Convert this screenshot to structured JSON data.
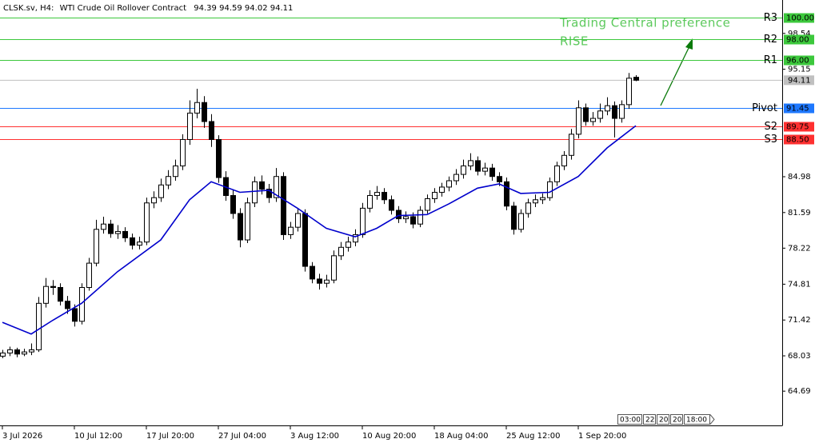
{
  "chart_data": {
    "type": "candlestick",
    "symbol": "CLSK.sv, H4:",
    "description": "WTI Crude Oil Rollover Contract",
    "annotation": [
      "Trading Central preference",
      "RISE"
    ],
    "xlim": [
      -0.33,
      108.33
    ],
    "ylim": [
      61.6,
      101.7
    ],
    "yticks": [
      64.69,
      68.03,
      71.42,
      74.81,
      78.22,
      81.59,
      84.98,
      95.15,
      98.54
    ],
    "xticks": [
      {
        "value": 0,
        "label": "3 Jul 2026"
      },
      {
        "value": 10,
        "label": "10 Jul 12:00"
      },
      {
        "value": 20,
        "label": "17 Jul 20:00"
      },
      {
        "value": 30,
        "label": "27 Jul 04:00"
      },
      {
        "value": 40,
        "label": "3 Aug 12:00"
      },
      {
        "value": 50,
        "label": "10 Aug 20:00"
      },
      {
        "value": 60,
        "label": "18 Aug 04:00"
      },
      {
        "value": 70,
        "label": "25 Aug 12:00"
      },
      {
        "value": 80,
        "label": "1 Sep 20:00"
      }
    ],
    "up_color": "#ffffff",
    "down_color": "#000000",
    "wick_color": "#000000",
    "candles": [
      [
        68.0,
        68.6,
        67.8,
        68.3
      ],
      [
        68.3,
        68.9,
        68.0,
        68.6
      ],
      [
        68.6,
        68.8,
        67.9,
        68.2
      ],
      [
        68.2,
        68.7,
        68.0,
        68.4
      ],
      [
        68.4,
        69.2,
        68.1,
        68.6
      ],
      [
        68.6,
        73.6,
        68.4,
        73.0
      ],
      [
        73.0,
        75.4,
        72.6,
        74.6
      ],
      [
        74.6,
        75.2,
        73.8,
        74.5
      ],
      [
        74.5,
        74.9,
        72.8,
        73.2
      ],
      [
        73.2,
        73.7,
        72.0,
        72.5
      ],
      [
        72.5,
        72.9,
        70.8,
        71.3
      ],
      [
        71.3,
        74.9,
        71.0,
        74.5
      ],
      [
        74.5,
        77.3,
        74.2,
        76.8
      ],
      [
        76.8,
        80.9,
        76.5,
        80.0
      ],
      [
        80.0,
        81.2,
        79.6,
        80.5
      ],
      [
        80.5,
        80.9,
        79.2,
        79.6
      ],
      [
        79.6,
        80.4,
        79.1,
        79.8
      ],
      [
        79.8,
        80.2,
        78.8,
        79.2
      ],
      [
        79.2,
        79.6,
        78.1,
        78.5
      ],
      [
        78.5,
        79.3,
        78.1,
        78.8
      ],
      [
        78.8,
        83.0,
        78.5,
        82.5
      ],
      [
        82.5,
        83.6,
        82.0,
        83.0
      ],
      [
        83.0,
        84.8,
        82.6,
        84.2
      ],
      [
        84.2,
        85.6,
        83.8,
        85.0
      ],
      [
        85.0,
        86.6,
        84.6,
        86.0
      ],
      [
        86.0,
        89.0,
        85.6,
        88.5
      ],
      [
        88.5,
        92.2,
        88.0,
        91.0
      ],
      [
        91.0,
        93.3,
        90.5,
        92.0
      ],
      [
        92.0,
        92.6,
        89.6,
        90.2
      ],
      [
        90.2,
        90.9,
        87.8,
        88.5
      ],
      [
        88.5,
        88.9,
        84.4,
        84.9
      ],
      [
        84.9,
        85.5,
        82.7,
        83.2
      ],
      [
        83.2,
        83.8,
        81.0,
        81.5
      ],
      [
        81.5,
        82.0,
        78.3,
        79.0
      ],
      [
        79.0,
        83.0,
        78.7,
        82.5
      ],
      [
        82.5,
        85.0,
        82.1,
        84.5
      ],
      [
        84.5,
        85.1,
        83.3,
        83.8
      ],
      [
        83.8,
        84.3,
        82.5,
        83.0
      ],
      [
        83.0,
        85.8,
        82.6,
        85.0
      ],
      [
        85.0,
        85.4,
        79.0,
        79.5
      ],
      [
        79.5,
        80.7,
        79.1,
        80.2
      ],
      [
        80.2,
        82.0,
        79.8,
        81.5
      ],
      [
        81.5,
        81.9,
        76.0,
        76.5
      ],
      [
        76.5,
        76.9,
        74.9,
        75.3
      ],
      [
        75.3,
        75.8,
        74.3,
        74.9
      ],
      [
        74.9,
        75.7,
        74.5,
        75.2
      ],
      [
        75.2,
        78.0,
        74.9,
        77.5
      ],
      [
        77.5,
        78.8,
        77.1,
        78.3
      ],
      [
        78.3,
        79.3,
        77.9,
        78.8
      ],
      [
        78.8,
        80.0,
        78.4,
        79.5
      ],
      [
        79.5,
        82.5,
        79.2,
        82.0
      ],
      [
        82.0,
        83.7,
        81.6,
        83.2
      ],
      [
        83.2,
        84.1,
        82.8,
        83.5
      ],
      [
        83.5,
        83.9,
        82.4,
        82.8
      ],
      [
        82.8,
        83.2,
        81.4,
        81.8
      ],
      [
        81.8,
        82.2,
        80.6,
        81.0
      ],
      [
        81.0,
        81.7,
        80.6,
        81.2
      ],
      [
        81.2,
        81.6,
        80.1,
        80.5
      ],
      [
        80.5,
        82.2,
        80.2,
        81.8
      ],
      [
        81.8,
        83.3,
        81.5,
        82.9
      ],
      [
        82.9,
        83.9,
        82.5,
        83.5
      ],
      [
        83.5,
        84.4,
        83.1,
        84.0
      ],
      [
        84.0,
        85.0,
        83.6,
        84.6
      ],
      [
        84.6,
        85.7,
        84.2,
        85.2
      ],
      [
        85.2,
        86.6,
        84.8,
        86.0
      ],
      [
        86.0,
        87.2,
        85.6,
        86.5
      ],
      [
        86.5,
        86.9,
        85.1,
        85.5
      ],
      [
        85.5,
        86.3,
        85.1,
        85.8
      ],
      [
        85.8,
        86.2,
        84.6,
        85.0
      ],
      [
        85.0,
        85.4,
        84.1,
        84.5
      ],
      [
        84.5,
        84.9,
        81.8,
        82.2
      ],
      [
        82.2,
        82.6,
        79.5,
        80.0
      ],
      [
        80.0,
        81.9,
        79.7,
        81.5
      ],
      [
        81.5,
        82.9,
        81.1,
        82.5
      ],
      [
        82.5,
        83.3,
        82.1,
        82.8
      ],
      [
        82.8,
        83.4,
        82.4,
        83.0
      ],
      [
        83.0,
        84.9,
        82.7,
        84.5
      ],
      [
        84.5,
        86.4,
        84.1,
        86.0
      ],
      [
        86.0,
        87.4,
        85.6,
        87.0
      ],
      [
        87.0,
        89.5,
        86.6,
        89.0
      ],
      [
        89.0,
        92.2,
        88.6,
        91.5
      ],
      [
        91.5,
        91.9,
        89.8,
        90.2
      ],
      [
        90.2,
        91.1,
        89.8,
        90.5
      ],
      [
        90.5,
        91.9,
        90.1,
        91.2
      ],
      [
        91.2,
        92.5,
        90.8,
        91.7
      ],
      [
        91.7,
        92.1,
        88.7,
        90.5
      ],
      [
        90.5,
        92.2,
        90.1,
        91.8
      ],
      [
        91.8,
        94.8,
        91.4,
        94.3
      ],
      [
        94.39,
        94.59,
        94.02,
        94.11
      ]
    ],
    "moving_average": {
      "color": "#0000cc",
      "x": [
        0,
        4,
        7,
        11,
        16,
        22,
        26,
        29,
        33,
        37,
        41,
        45,
        49,
        52,
        55,
        59,
        62,
        66,
        69,
        72,
        76,
        80,
        84,
        88
      ],
      "values": [
        71.2,
        70.1,
        71.4,
        73.0,
        76.0,
        79.0,
        82.8,
        84.5,
        83.5,
        83.7,
        82.0,
        80.1,
        79.3,
        80.1,
        81.3,
        81.4,
        82.4,
        83.9,
        84.3,
        83.4,
        83.5,
        85.0,
        87.7,
        89.8
      ]
    },
    "price_line_color": "#c0c0c0",
    "levels": [
      {
        "name": "R3",
        "value": 100,
        "value_label": "100.00",
        "color": "#3cc83c"
      },
      {
        "name": "R2",
        "value": 98,
        "value_label": "98.00",
        "color": "#3cc83c"
      },
      {
        "name": "R1",
        "value": 96,
        "value_label": "96.00",
        "color": "#3cc83c"
      },
      {
        "name": "Pivot",
        "value": 91.45,
        "value_label": "91.45",
        "color": "#1e78ff"
      },
      {
        "name": "S2",
        "value": 89.75,
        "value_label": "89.75",
        "color": "#ff3030"
      },
      {
        "name": "S3",
        "value": 88.5,
        "value_label": "88.50",
        "color": "#ff3030"
      }
    ],
    "time_scale_box": [
      "03:00",
      "22",
      "20",
      "20",
      "18:00"
    ]
  }
}
